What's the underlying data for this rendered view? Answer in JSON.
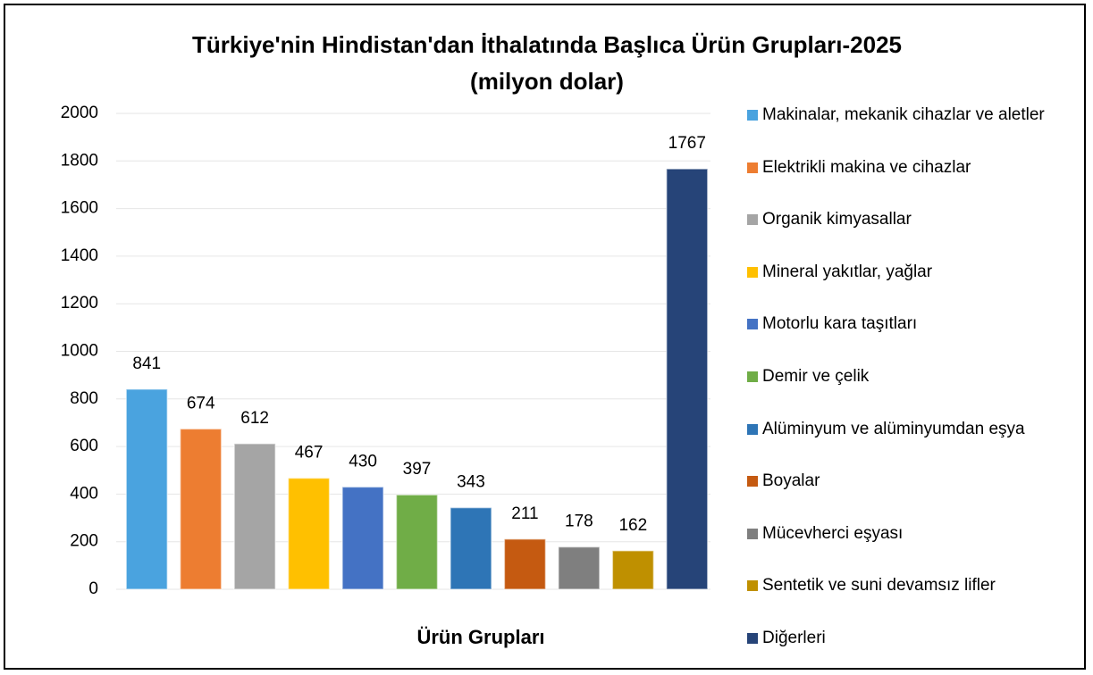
{
  "chart_data": {
    "type": "bar",
    "title": "Türkiye'nin Hindistan'dan İthalatında Başlıca Ürün Grupları-2025",
    "subtitle": "(milyon dolar)",
    "x_label": "Ürün Grupları",
    "categories": [
      "Makinalar, mekanik cihazlar ve aletler",
      "Elektrikli makina ve cihazlar",
      "Organik kimyasallar",
      "Mineral yakıtlar, yağlar",
      "Motorlu kara taşıtları",
      "Demir ve çelik",
      "Alüminyum ve alüminyumdan eşya",
      "Boyalar",
      "Mücevherci eşyası",
      "Sentetik ve suni devamsız lifler",
      "Diğerleri"
    ],
    "values": [
      841,
      674,
      612,
      467,
      430,
      397,
      343,
      211,
      178,
      162,
      1767
    ],
    "colors": [
      "#4aa3df",
      "#ed7d31",
      "#a5a5a5",
      "#ffc000",
      "#4472c4",
      "#70ad47",
      "#2e75b6",
      "#c55a11",
      "#7f7f7f",
      "#bf9000",
      "#264478"
    ],
    "ylim": [
      0,
      2000
    ],
    "yticks": [
      0,
      200,
      400,
      600,
      800,
      1000,
      1200,
      1400,
      1600,
      1800,
      2000
    ],
    "grid": true,
    "legend": "right"
  }
}
